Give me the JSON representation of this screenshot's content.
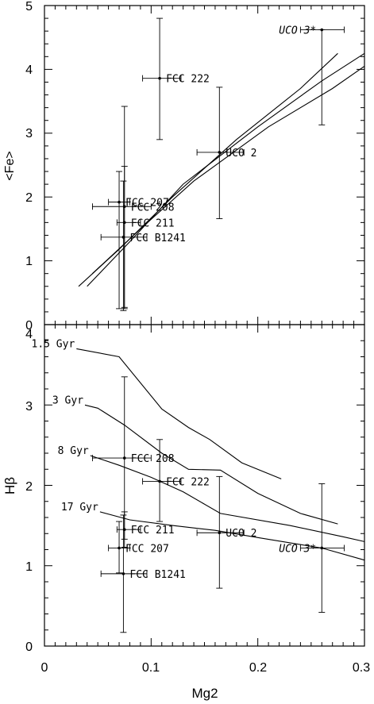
{
  "chart_data": [
    {
      "type": "scatter",
      "panel": "top",
      "xlabel": "Mg2",
      "ylabel": "<Fe>",
      "xlim": [
        0,
        0.3
      ],
      "ylim": [
        0,
        5
      ],
      "yticks": [
        "0",
        "1",
        "2",
        "3",
        "4",
        "5"
      ],
      "points": [
        {
          "label": "FCC 207",
          "x": 0.07,
          "y": 1.92,
          "xerr": [
            0.06,
            0.08
          ],
          "yerr": [
            0.25,
            2.4
          ]
        },
        {
          "label": "FCC 208",
          "x": 0.075,
          "y": 1.85,
          "xerr": [
            0.045,
            0.1
          ],
          "yerr": [
            0.27,
            3.42
          ]
        },
        {
          "label": "FCC 211",
          "x": 0.075,
          "y": 1.6,
          "xerr": [
            0.068,
            0.09
          ],
          "yerr": [
            0.25,
            2.48
          ]
        },
        {
          "label": "FCC B1241",
          "x": 0.074,
          "y": 1.37,
          "xerr": [
            0.053,
            0.096
          ],
          "yerr": [
            0.22,
            2.25
          ]
        },
        {
          "label": "FCC 222",
          "x": 0.108,
          "y": 3.86,
          "xerr": [
            0.092,
            0.128
          ],
          "yerr": [
            2.9,
            4.8
          ]
        },
        {
          "label": "UCO 2",
          "x": 0.164,
          "y": 2.7,
          "xerr": [
            0.143,
            0.187
          ],
          "yerr": [
            1.66,
            3.72
          ]
        },
        {
          "label": "UCO 3*",
          "x": 0.26,
          "y": 4.62,
          "xerr": [
            0.24,
            0.281
          ],
          "yerr": [
            3.13,
            4.62
          ]
        }
      ],
      "model_lines": [
        {
          "points": [
            [
              0.032,
              0.6
            ],
            [
              0.07,
              1.18
            ],
            [
              0.12,
              2.0
            ],
            [
              0.18,
              2.9
            ],
            [
              0.24,
              3.7
            ],
            [
              0.275,
              4.25
            ]
          ]
        },
        {
          "points": [
            [
              0.04,
              0.6
            ],
            [
              0.08,
              1.3
            ],
            [
              0.13,
              2.2
            ],
            [
              0.2,
              3.1
            ],
            [
              0.26,
              3.82
            ],
            [
              0.3,
              4.25
            ]
          ]
        },
        {
          "points": [
            [
              0.045,
              0.8
            ],
            [
              0.09,
              1.5
            ],
            [
              0.14,
              2.25
            ],
            [
              0.21,
              3.1
            ],
            [
              0.27,
              3.7
            ],
            [
              0.3,
              4.05
            ]
          ]
        }
      ]
    },
    {
      "type": "scatter",
      "panel": "bottom",
      "xlabel": "Mg2",
      "ylabel": "Hβ",
      "xlim": [
        0,
        0.3
      ],
      "ylim": [
        0,
        4
      ],
      "xticks": [
        "0",
        "0.1",
        "0.2",
        "0.3"
      ],
      "yticks": [
        "0",
        "1",
        "2",
        "3",
        "4"
      ],
      "points": [
        {
          "label": "FCC 208",
          "x": 0.075,
          "y": 2.34,
          "xerr": [
            0.045,
            0.1
          ],
          "yerr": [
            1.33,
            3.35
          ]
        },
        {
          "label": "FCC 222",
          "x": 0.108,
          "y": 2.05,
          "xerr": [
            0.092,
            0.128
          ],
          "yerr": [
            1.55,
            2.57
          ]
        },
        {
          "label": "FCC 211",
          "x": 0.075,
          "y": 1.45,
          "xerr": [
            0.068,
            0.09
          ],
          "yerr": [
            1.23,
            1.67
          ]
        },
        {
          "label": "FCC 207",
          "x": 0.07,
          "y": 1.22,
          "xerr": [
            0.06,
            0.08
          ],
          "yerr": [
            0.91,
            1.55
          ]
        },
        {
          "label": "FCC B1241",
          "x": 0.074,
          "y": 0.9,
          "xerr": [
            0.053,
            0.096
          ],
          "yerr": [
            0.17,
            1.63
          ]
        },
        {
          "label": "UCO 2",
          "x": 0.164,
          "y": 1.41,
          "xerr": [
            0.143,
            0.187
          ],
          "yerr": [
            0.72,
            2.11
          ]
        },
        {
          "label": "UCO 3*",
          "x": 0.26,
          "y": 1.22,
          "xerr": [
            0.24,
            0.281
          ],
          "yerr": [
            0.42,
            2.02
          ]
        }
      ],
      "age_tracks": [
        {
          "name": "1.5 Gyr",
          "points": [
            [
              0.03,
              3.7
            ],
            [
              0.07,
              3.6
            ],
            [
              0.11,
              2.95
            ],
            [
              0.135,
              2.72
            ],
            [
              0.155,
              2.57
            ],
            [
              0.185,
              2.28
            ],
            [
              0.222,
              2.08
            ]
          ]
        },
        {
          "name": "3 Gyr",
          "points": [
            [
              0.038,
              3.0
            ],
            [
              0.05,
              2.96
            ],
            [
              0.075,
              2.75
            ],
            [
              0.11,
              2.4
            ],
            [
              0.135,
              2.2
            ],
            [
              0.165,
              2.19
            ],
            [
              0.2,
              1.9
            ],
            [
              0.24,
              1.65
            ],
            [
              0.275,
              1.52
            ]
          ]
        },
        {
          "name": "8 Gyr",
          "points": [
            [
              0.043,
              2.37
            ],
            [
              0.07,
              2.25
            ],
            [
              0.1,
              2.1
            ],
            [
              0.13,
              1.92
            ],
            [
              0.165,
              1.65
            ],
            [
              0.23,
              1.5
            ],
            [
              0.28,
              1.36
            ],
            [
              0.3,
              1.3
            ]
          ]
        },
        {
          "name": "17 Gyr",
          "points": [
            [
              0.052,
              1.67
            ],
            [
              0.08,
              1.57
            ],
            [
              0.12,
              1.5
            ],
            [
              0.16,
              1.44
            ],
            [
              0.2,
              1.35
            ],
            [
              0.26,
              1.22
            ],
            [
              0.3,
              1.07
            ]
          ]
        }
      ]
    }
  ]
}
